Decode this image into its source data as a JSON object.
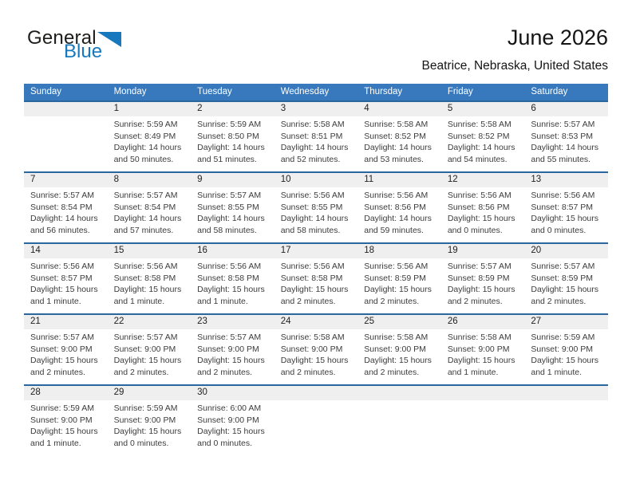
{
  "logo": {
    "part1": "General",
    "part2": "Blue",
    "triangle_color": "#1878bd"
  },
  "header": {
    "month_title": "June 2026",
    "location": "Beatrice, Nebraska, United States"
  },
  "colors": {
    "header_bar": "#3879be",
    "week_separator": "#2b679f",
    "day_number_strip": "#efefef",
    "logo_blue": "#1878bd"
  },
  "calendar": {
    "day_headers": [
      "Sunday",
      "Monday",
      "Tuesday",
      "Wednesday",
      "Thursday",
      "Friday",
      "Saturday"
    ],
    "weeks": [
      {
        "days": [
          {
            "num": "",
            "lines": []
          },
          {
            "num": "1",
            "lines": [
              "Sunrise: 5:59 AM",
              "Sunset: 8:49 PM",
              "Daylight: 14 hours",
              "and 50 minutes."
            ]
          },
          {
            "num": "2",
            "lines": [
              "Sunrise: 5:59 AM",
              "Sunset: 8:50 PM",
              "Daylight: 14 hours",
              "and 51 minutes."
            ]
          },
          {
            "num": "3",
            "lines": [
              "Sunrise: 5:58 AM",
              "Sunset: 8:51 PM",
              "Daylight: 14 hours",
              "and 52 minutes."
            ]
          },
          {
            "num": "4",
            "lines": [
              "Sunrise: 5:58 AM",
              "Sunset: 8:52 PM",
              "Daylight: 14 hours",
              "and 53 minutes."
            ]
          },
          {
            "num": "5",
            "lines": [
              "Sunrise: 5:58 AM",
              "Sunset: 8:52 PM",
              "Daylight: 14 hours",
              "and 54 minutes."
            ]
          },
          {
            "num": "6",
            "lines": [
              "Sunrise: 5:57 AM",
              "Sunset: 8:53 PM",
              "Daylight: 14 hours",
              "and 55 minutes."
            ]
          }
        ]
      },
      {
        "days": [
          {
            "num": "7",
            "lines": [
              "Sunrise: 5:57 AM",
              "Sunset: 8:54 PM",
              "Daylight: 14 hours",
              "and 56 minutes."
            ]
          },
          {
            "num": "8",
            "lines": [
              "Sunrise: 5:57 AM",
              "Sunset: 8:54 PM",
              "Daylight: 14 hours",
              "and 57 minutes."
            ]
          },
          {
            "num": "9",
            "lines": [
              "Sunrise: 5:57 AM",
              "Sunset: 8:55 PM",
              "Daylight: 14 hours",
              "and 58 minutes."
            ]
          },
          {
            "num": "10",
            "lines": [
              "Sunrise: 5:56 AM",
              "Sunset: 8:55 PM",
              "Daylight: 14 hours",
              "and 58 minutes."
            ]
          },
          {
            "num": "11",
            "lines": [
              "Sunrise: 5:56 AM",
              "Sunset: 8:56 PM",
              "Daylight: 14 hours",
              "and 59 minutes."
            ]
          },
          {
            "num": "12",
            "lines": [
              "Sunrise: 5:56 AM",
              "Sunset: 8:56 PM",
              "Daylight: 15 hours",
              "and 0 minutes."
            ]
          },
          {
            "num": "13",
            "lines": [
              "Sunrise: 5:56 AM",
              "Sunset: 8:57 PM",
              "Daylight: 15 hours",
              "and 0 minutes."
            ]
          }
        ]
      },
      {
        "days": [
          {
            "num": "14",
            "lines": [
              "Sunrise: 5:56 AM",
              "Sunset: 8:57 PM",
              "Daylight: 15 hours",
              "and 1 minute."
            ]
          },
          {
            "num": "15",
            "lines": [
              "Sunrise: 5:56 AM",
              "Sunset: 8:58 PM",
              "Daylight: 15 hours",
              "and 1 minute."
            ]
          },
          {
            "num": "16",
            "lines": [
              "Sunrise: 5:56 AM",
              "Sunset: 8:58 PM",
              "Daylight: 15 hours",
              "and 1 minute."
            ]
          },
          {
            "num": "17",
            "lines": [
              "Sunrise: 5:56 AM",
              "Sunset: 8:58 PM",
              "Daylight: 15 hours",
              "and 2 minutes."
            ]
          },
          {
            "num": "18",
            "lines": [
              "Sunrise: 5:56 AM",
              "Sunset: 8:59 PM",
              "Daylight: 15 hours",
              "and 2 minutes."
            ]
          },
          {
            "num": "19",
            "lines": [
              "Sunrise: 5:57 AM",
              "Sunset: 8:59 PM",
              "Daylight: 15 hours",
              "and 2 minutes."
            ]
          },
          {
            "num": "20",
            "lines": [
              "Sunrise: 5:57 AM",
              "Sunset: 8:59 PM",
              "Daylight: 15 hours",
              "and 2 minutes."
            ]
          }
        ]
      },
      {
        "days": [
          {
            "num": "21",
            "lines": [
              "Sunrise: 5:57 AM",
              "Sunset: 9:00 PM",
              "Daylight: 15 hours",
              "and 2 minutes."
            ]
          },
          {
            "num": "22",
            "lines": [
              "Sunrise: 5:57 AM",
              "Sunset: 9:00 PM",
              "Daylight: 15 hours",
              "and 2 minutes."
            ]
          },
          {
            "num": "23",
            "lines": [
              "Sunrise: 5:57 AM",
              "Sunset: 9:00 PM",
              "Daylight: 15 hours",
              "and 2 minutes."
            ]
          },
          {
            "num": "24",
            "lines": [
              "Sunrise: 5:58 AM",
              "Sunset: 9:00 PM",
              "Daylight: 15 hours",
              "and 2 minutes."
            ]
          },
          {
            "num": "25",
            "lines": [
              "Sunrise: 5:58 AM",
              "Sunset: 9:00 PM",
              "Daylight: 15 hours",
              "and 2 minutes."
            ]
          },
          {
            "num": "26",
            "lines": [
              "Sunrise: 5:58 AM",
              "Sunset: 9:00 PM",
              "Daylight: 15 hours",
              "and 1 minute."
            ]
          },
          {
            "num": "27",
            "lines": [
              "Sunrise: 5:59 AM",
              "Sunset: 9:00 PM",
              "Daylight: 15 hours",
              "and 1 minute."
            ]
          }
        ]
      },
      {
        "days": [
          {
            "num": "28",
            "lines": [
              "Sunrise: 5:59 AM",
              "Sunset: 9:00 PM",
              "Daylight: 15 hours",
              "and 1 minute."
            ]
          },
          {
            "num": "29",
            "lines": [
              "Sunrise: 5:59 AM",
              "Sunset: 9:00 PM",
              "Daylight: 15 hours",
              "and 0 minutes."
            ]
          },
          {
            "num": "30",
            "lines": [
              "Sunrise: 6:00 AM",
              "Sunset: 9:00 PM",
              "Daylight: 15 hours",
              "and 0 minutes."
            ]
          },
          {
            "num": "",
            "lines": []
          },
          {
            "num": "",
            "lines": []
          },
          {
            "num": "",
            "lines": []
          },
          {
            "num": "",
            "lines": []
          }
        ]
      }
    ]
  }
}
